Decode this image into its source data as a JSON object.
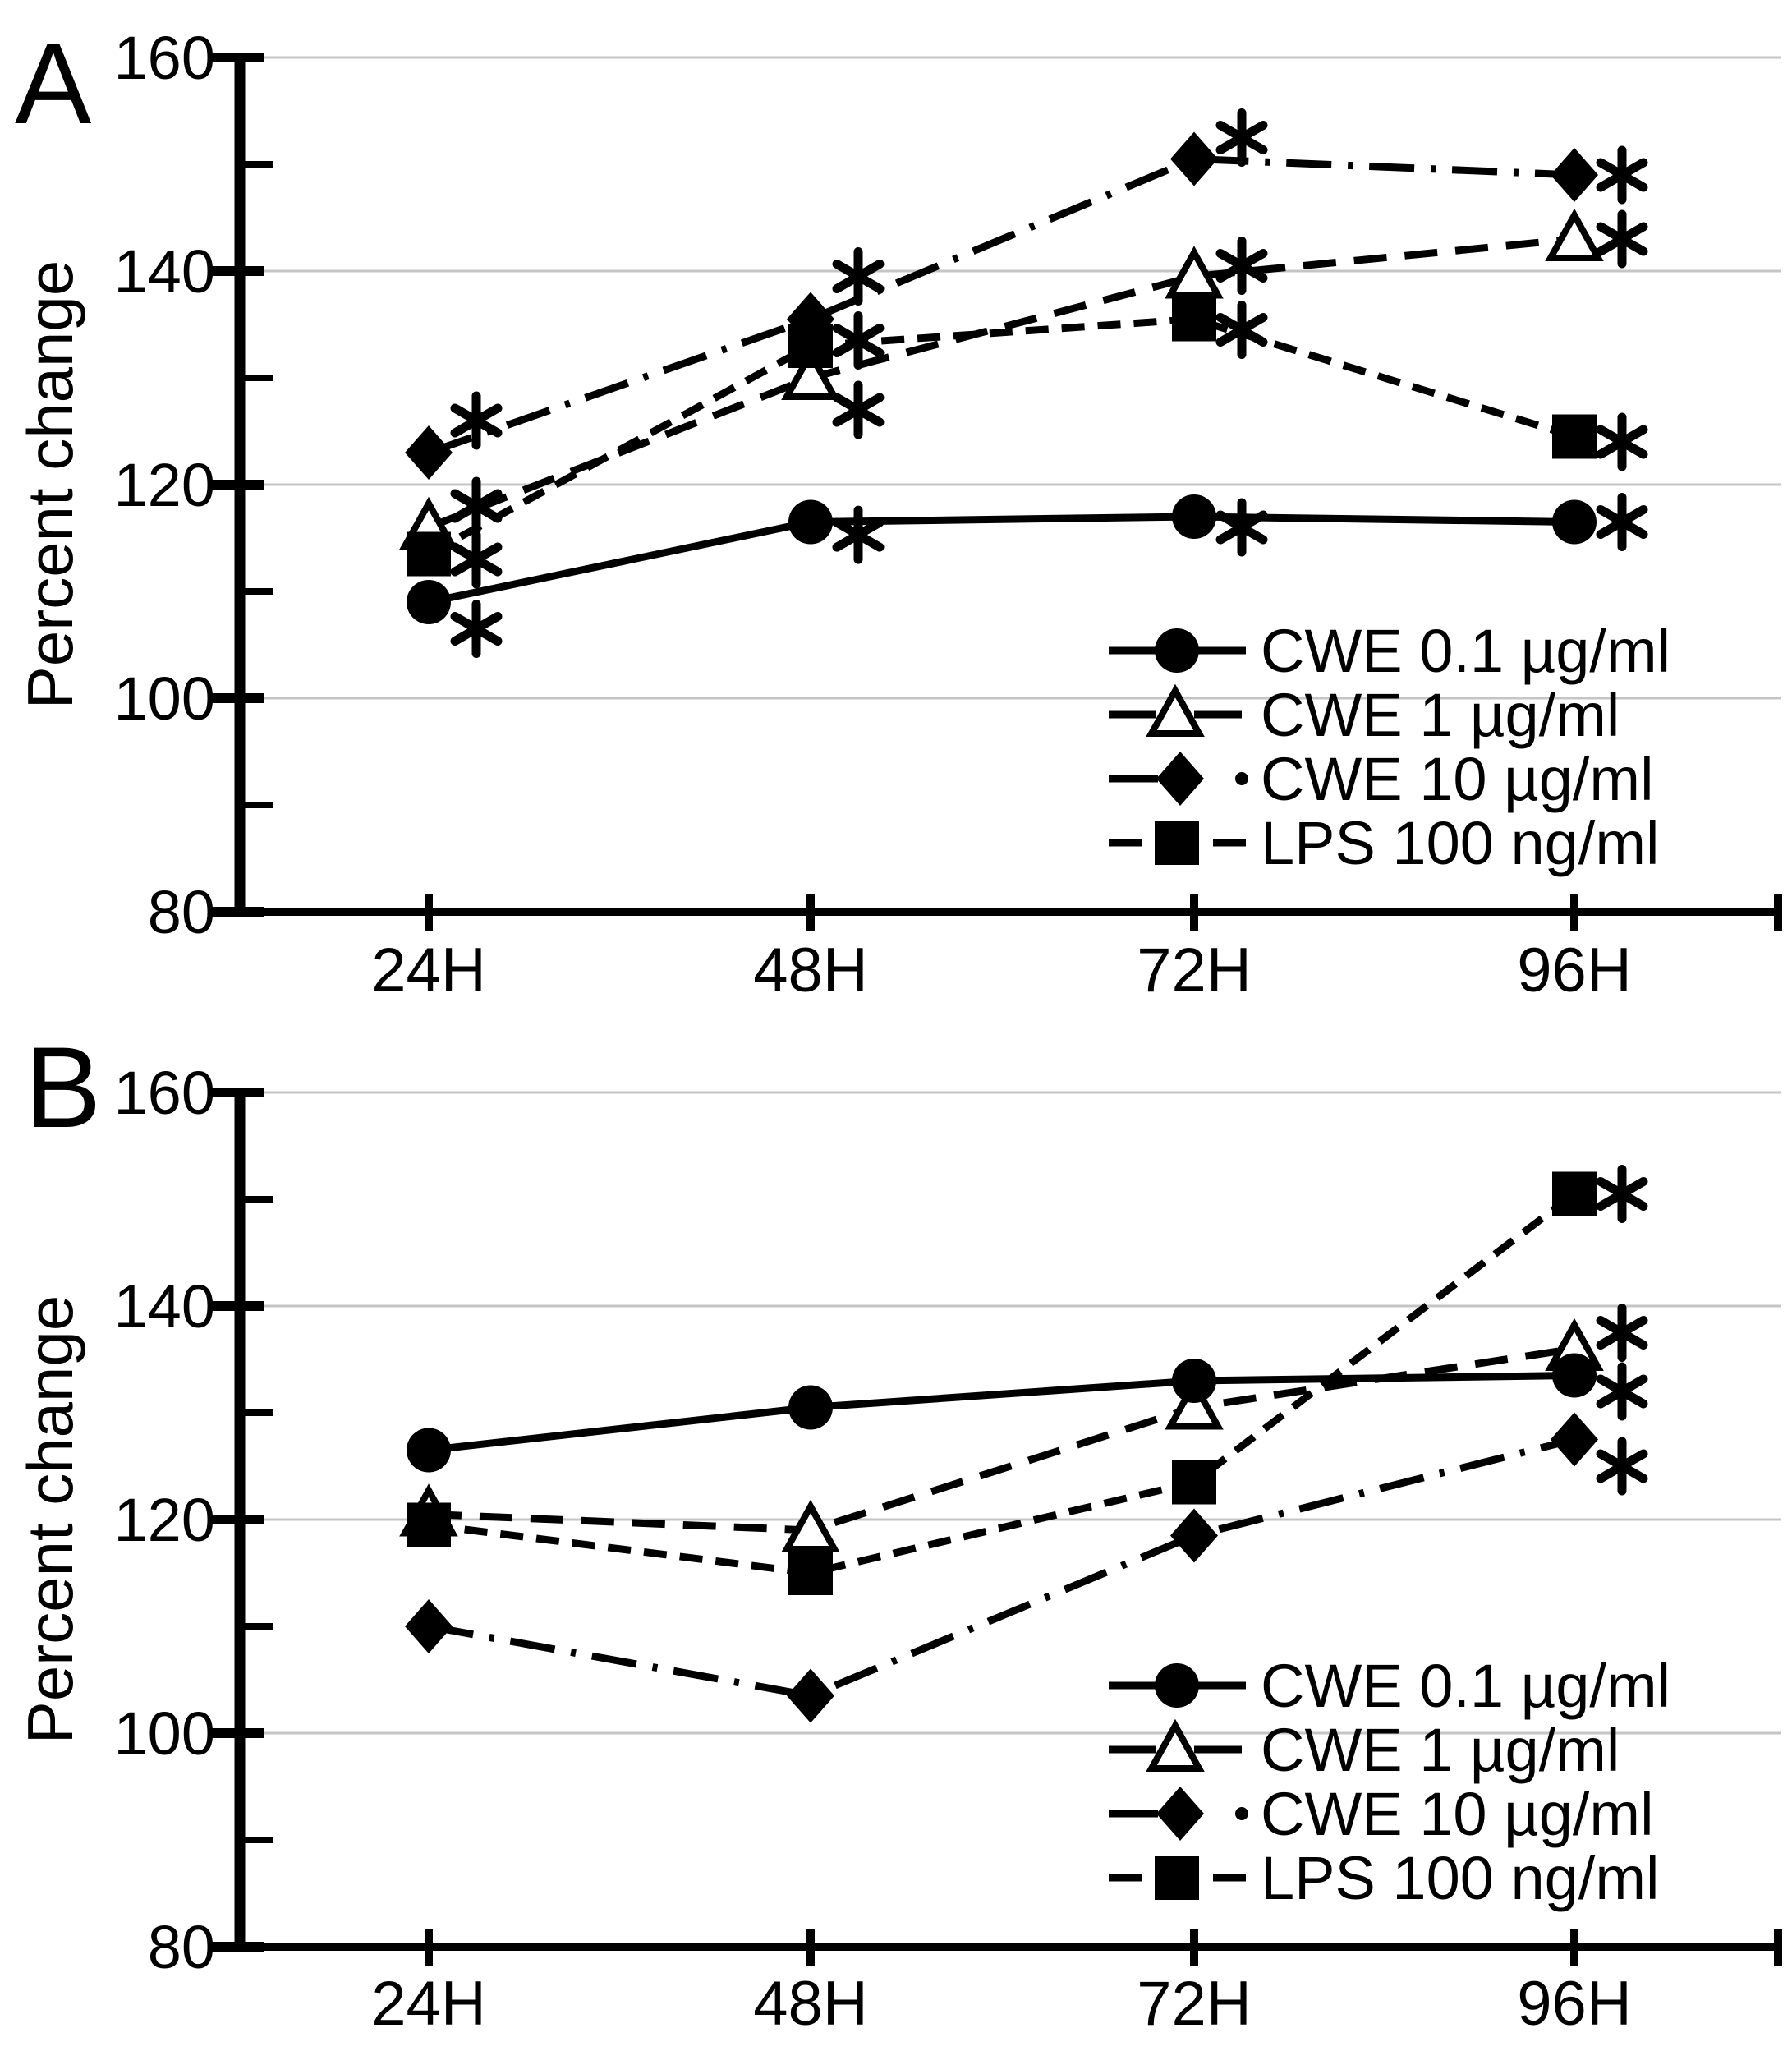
{
  "figure": {
    "background": "#ffffff",
    "line_color": "#000000",
    "grid_color": "#c5c5c5",
    "open_marker_fill": "#ffffff",
    "significance_symbol": "*"
  },
  "chart_data": [
    {
      "type": "line",
      "panel_label": "A",
      "title": "",
      "xlabel": "",
      "ylabel": "Percent change",
      "categories": [
        "24H",
        "48H",
        "72H",
        "96H"
      ],
      "ylim": [
        80,
        160
      ],
      "yticks_major": [
        80,
        100,
        120,
        140,
        160
      ],
      "yticks_minor": [
        90,
        110,
        130,
        150
      ],
      "gridlines": [
        100,
        120,
        140,
        160
      ],
      "grid": true,
      "legend_position": "inside-bottom-right",
      "series": [
        {
          "name": "CWE 0.1 µg/ml",
          "marker": "filled-circle",
          "line_style": "solid",
          "values": [
            109,
            116.5,
            117,
            116.5
          ],
          "significant": [
            true,
            true,
            true,
            true
          ],
          "star_dy": [
            -2.5,
            -1.2,
            -1,
            0
          ]
        },
        {
          "name": "CWE 1 µg/ml",
          "marker": "open-triangle",
          "line_style": "dashed",
          "values": [
            116,
            130,
            139.5,
            143
          ],
          "significant": [
            true,
            true,
            true,
            true
          ],
          "star_dy": [
            2,
            -3,
            1,
            0
          ]
        },
        {
          "name": "CWE 10 µg/ml",
          "marker": "filled-diamond",
          "line_style": "dash-dot",
          "values": [
            123,
            135.5,
            150.5,
            149
          ],
          "significant": [
            true,
            true,
            true,
            true
          ],
          "star_dy": [
            3,
            4,
            2,
            0
          ]
        },
        {
          "name": "LPS 100 ng/ml",
          "marker": "filled-square",
          "line_style": "short-dash",
          "values": [
            113.5,
            133,
            135.5,
            124.5
          ],
          "significant": [
            true,
            true,
            true,
            true
          ],
          "star_dy": [
            -0.5,
            0.5,
            -1,
            -0.5
          ]
        }
      ]
    },
    {
      "type": "line",
      "panel_label": "B",
      "title": "",
      "xlabel": "",
      "ylabel": "Percent change",
      "categories": [
        "24H",
        "48H",
        "72H",
        "96H"
      ],
      "ylim": [
        80,
        160
      ],
      "yticks_major": [
        80,
        100,
        120,
        140,
        160
      ],
      "yticks_minor": [
        90,
        110,
        130,
        150
      ],
      "gridlines": [
        100,
        120,
        140,
        160
      ],
      "grid": true,
      "legend_position": "inside-bottom-right",
      "series": [
        {
          "name": "CWE 0.1 µg/ml",
          "marker": "filled-circle",
          "line_style": "solid",
          "values": [
            126.5,
            130.5,
            133,
            133.5
          ],
          "significant": [
            false,
            false,
            false,
            true
          ],
          "star_dy": [
            0,
            0,
            0,
            -1.5
          ]
        },
        {
          "name": "CWE 1 µg/ml",
          "marker": "open-triangle",
          "line_style": "dashed",
          "values": [
            120.5,
            119,
            130.5,
            136
          ],
          "significant": [
            false,
            false,
            false,
            true
          ],
          "star_dy": [
            0,
            0,
            0,
            1.5
          ]
        },
        {
          "name": "CWE 10 µg/ml",
          "marker": "filled-diamond",
          "line_style": "dash-dot",
          "values": [
            110,
            103.5,
            118.5,
            127.5
          ],
          "significant": [
            false,
            false,
            false,
            true
          ],
          "star_dy": [
            0,
            0,
            0,
            -2.5
          ]
        },
        {
          "name": "LPS 100 ng/ml",
          "marker": "filled-square",
          "line_style": "short-dash",
          "values": [
            119.5,
            115,
            123.5,
            150.5
          ],
          "significant": [
            false,
            false,
            false,
            true
          ],
          "star_dy": [
            0,
            0,
            0,
            0
          ]
        }
      ]
    }
  ]
}
